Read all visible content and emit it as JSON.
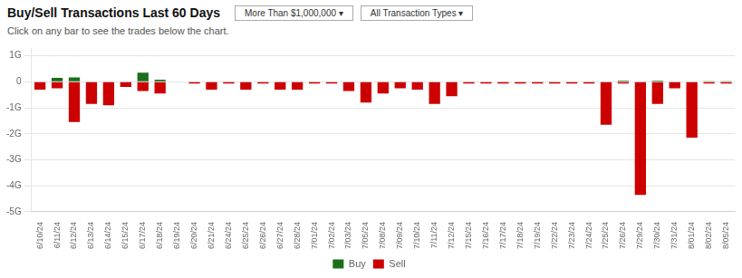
{
  "chart_data": {
    "type": "bar",
    "title": "Buy/Sell Transactions Last 60 Days",
    "subtitle": "Click on any bar to see the trades below the chart.",
    "annotations": [
      "More Than $1,000,000 ▾",
      "All Transaction Types ▾"
    ],
    "categories": [
      "6/10/24",
      "6/11/24",
      "6/12/24",
      "6/13/24",
      "6/14/24",
      "6/15/24",
      "6/17/24",
      "6/18/24",
      "6/19/24",
      "6/20/24",
      "6/21/24",
      "6/24/24",
      "6/25/24",
      "6/26/24",
      "6/27/24",
      "6/28/24",
      "7/01/24",
      "7/02/24",
      "7/03/24",
      "7/05/24",
      "7/08/24",
      "7/09/24",
      "7/10/24",
      "7/11/24",
      "7/12/24",
      "7/15/24",
      "7/16/24",
      "7/17/24",
      "7/18/24",
      "7/19/24",
      "7/22/24",
      "7/23/24",
      "7/24/24",
      "7/25/24",
      "7/26/24",
      "7/29/24",
      "7/30/24",
      "7/31/24",
      "8/01/24",
      "8/02/24",
      "8/05/24"
    ],
    "series": [
      {
        "name": "Buy",
        "color": "#1a6e1a",
        "values": [
          0,
          150000000,
          170000000,
          0,
          0,
          0,
          350000000,
          80000000,
          0,
          0,
          0,
          0,
          0,
          0,
          0,
          0,
          0,
          0,
          0,
          0,
          0,
          0,
          0,
          0,
          0,
          0,
          0,
          0,
          0,
          0,
          0,
          0,
          0,
          0,
          50000000,
          0,
          50000000,
          0,
          0,
          30000000,
          30000000
        ]
      },
      {
        "name": "Sell",
        "color": "#cc0000",
        "values": [
          -300000000,
          -250000000,
          -1550000000,
          -850000000,
          -900000000,
          -200000000,
          -350000000,
          -450000000,
          0,
          -70000000,
          -300000000,
          -70000000,
          -300000000,
          -70000000,
          -300000000,
          -300000000,
          -70000000,
          -70000000,
          -350000000,
          -800000000,
          -450000000,
          -250000000,
          -300000000,
          -850000000,
          -550000000,
          -70000000,
          -70000000,
          -70000000,
          -70000000,
          -70000000,
          -70000000,
          -70000000,
          -70000000,
          -1650000000,
          -70000000,
          -4350000000,
          -850000000,
          -250000000,
          -2150000000,
          -70000000,
          -70000000
        ]
      }
    ],
    "ylim": [
      -5000000000,
      1300000000
    ],
    "yticks": [
      {
        "value": 1000000000,
        "label": "1G"
      },
      0,
      {
        "value": -1000000000,
        "label": "-1G"
      },
      {
        "value": -2000000000,
        "label": "-2G"
      },
      {
        "value": -3000000000,
        "label": "-3G"
      },
      {
        "value": -4000000000,
        "label": "-4G"
      },
      {
        "value": -5000000000,
        "label": "-5G"
      }
    ],
    "grid": true,
    "legend": "bottom"
  }
}
